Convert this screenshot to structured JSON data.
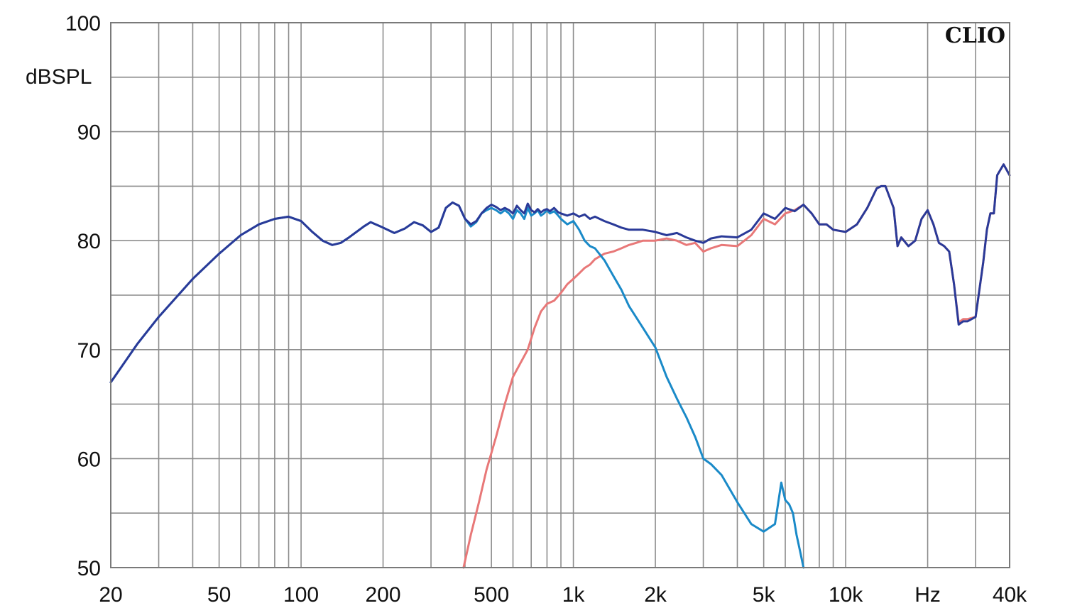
{
  "chart_data": {
    "type": "line",
    "brand": "CLIO",
    "ylabel": "dBSPL",
    "xunit": "Hz",
    "xscale": "log",
    "xlim": [
      20,
      40000
    ],
    "ylim": [
      50,
      100
    ],
    "grid": true,
    "xticks": [
      {
        "value": 20,
        "label": "20"
      },
      {
        "value": 50,
        "label": "50"
      },
      {
        "value": 100,
        "label": "100"
      },
      {
        "value": 200,
        "label": "200"
      },
      {
        "value": 500,
        "label": "500"
      },
      {
        "value": 1000,
        "label": "1k"
      },
      {
        "value": 2000,
        "label": "2k"
      },
      {
        "value": 5000,
        "label": "5k"
      },
      {
        "value": 10000,
        "label": "10k"
      },
      {
        "value": 20000,
        "label": "Hz"
      },
      {
        "value": 40000,
        "label": "40k"
      }
    ],
    "yticks": [
      {
        "value": 100,
        "label": "100"
      },
      {
        "value": 90,
        "label": "90"
      },
      {
        "value": 80,
        "label": "80"
      },
      {
        "value": 70,
        "label": "70"
      },
      {
        "value": 60,
        "label": "60"
      },
      {
        "value": 50,
        "label": "50"
      }
    ],
    "series": [
      {
        "color": "#e87878",
        "x": [
          395,
          420,
          450,
          480,
          520,
          560,
          600,
          640,
          680,
          720,
          760,
          800,
          850,
          900,
          950,
          1000,
          1050,
          1100,
          1150,
          1200,
          1300,
          1400,
          1500,
          1600,
          1700,
          1800,
          2000,
          2200,
          2400,
          2600,
          2800,
          3000,
          3200,
          3500,
          4000,
          4500,
          5000,
          5500,
          6000,
          6500,
          7000,
          7500,
          8000,
          8500,
          9000,
          10000,
          11000,
          12000,
          13000,
          13500,
          14000,
          15000,
          15500,
          16000,
          17000,
          18000,
          19000,
          20000,
          21000,
          22000,
          23000,
          24000,
          25000,
          26000,
          27000,
          28000,
          30000,
          32000,
          33000,
          34000,
          35000,
          36000,
          38000,
          40000
        ],
        "values": [
          50.0,
          53.0,
          56.0,
          59.0,
          62.0,
          65.0,
          67.5,
          68.8,
          70.0,
          72.0,
          73.5,
          74.2,
          74.5,
          75.2,
          76.0,
          76.5,
          77.0,
          77.5,
          77.8,
          78.3,
          78.8,
          79.0,
          79.3,
          79.6,
          79.8,
          80.0,
          80.0,
          80.2,
          80.0,
          79.6,
          79.8,
          79.0,
          79.3,
          79.6,
          79.5,
          80.5,
          82.0,
          81.5,
          82.5,
          82.8,
          83.3,
          82.5,
          81.5,
          81.5,
          81.0,
          80.8,
          81.5,
          83.0,
          84.8,
          85.0,
          85.0,
          83.0,
          79.5,
          80.3,
          79.5,
          80.0,
          82.0,
          82.8,
          81.5,
          79.8,
          79.5,
          79.0,
          76.0,
          72.5,
          72.8,
          72.8,
          73.0,
          78.0,
          81.0,
          82.5,
          82.5,
          86.0,
          87.0,
          86.0
        ]
      },
      {
        "color": "#1a8ac8",
        "x": [
          20,
          25,
          30,
          40,
          50,
          60,
          70,
          80,
          90,
          100,
          110,
          120,
          130,
          140,
          150,
          170,
          180,
          200,
          220,
          240,
          260,
          280,
          300,
          320,
          340,
          360,
          380,
          400,
          420,
          440,
          460,
          480,
          500,
          520,
          540,
          560,
          580,
          600,
          620,
          640,
          660,
          680,
          700,
          720,
          740,
          760,
          780,
          800,
          820,
          850,
          880,
          900,
          950,
          1000,
          1050,
          1100,
          1150,
          1200,
          1300,
          1400,
          1500,
          1600,
          1800,
          2000,
          2200,
          2400,
          2600,
          2800,
          3000,
          3200,
          3500,
          4000,
          4500,
          5000,
          5500,
          5800,
          6000,
          6200,
          6400,
          6600,
          6800,
          7000
        ],
        "values": [
          67.0,
          70.5,
          73.0,
          76.5,
          78.8,
          80.5,
          81.5,
          82.0,
          82.2,
          81.8,
          80.8,
          80.0,
          79.6,
          79.8,
          80.3,
          81.3,
          81.7,
          81.2,
          80.7,
          81.1,
          81.7,
          81.4,
          80.8,
          81.2,
          83.0,
          83.5,
          83.2,
          82.0,
          81.3,
          81.7,
          82.5,
          82.8,
          83.0,
          82.8,
          82.5,
          82.8,
          82.5,
          82.0,
          82.8,
          82.5,
          82.0,
          83.0,
          82.3,
          82.5,
          82.8,
          82.3,
          82.5,
          82.8,
          82.5,
          82.7,
          82.3,
          82.0,
          81.5,
          81.8,
          81.0,
          80.0,
          79.5,
          79.3,
          78.2,
          76.8,
          75.5,
          74.0,
          72.0,
          70.2,
          67.5,
          65.5,
          63.8,
          62.0,
          60.0,
          59.5,
          58.5,
          56.0,
          54.0,
          53.3,
          54.0,
          57.8,
          56.2,
          55.8,
          55.0,
          53.0,
          51.5,
          50.0
        ]
      },
      {
        "color": "#2a3a98",
        "x": [
          20,
          25,
          30,
          40,
          50,
          60,
          70,
          80,
          90,
          100,
          110,
          120,
          130,
          140,
          150,
          170,
          180,
          200,
          220,
          240,
          260,
          280,
          300,
          320,
          340,
          360,
          380,
          400,
          420,
          440,
          460,
          480,
          500,
          520,
          540,
          560,
          580,
          600,
          620,
          640,
          660,
          680,
          700,
          720,
          740,
          760,
          780,
          800,
          820,
          850,
          880,
          900,
          950,
          1000,
          1050,
          1100,
          1150,
          1200,
          1300,
          1400,
          1500,
          1600,
          1800,
          2000,
          2200,
          2400,
          2600,
          2800,
          3000,
          3200,
          3500,
          4000,
          4500,
          5000,
          5500,
          6000,
          6500,
          7000,
          7500,
          8000,
          8500,
          9000,
          10000,
          11000,
          12000,
          13000,
          13500,
          14000,
          15000,
          15500,
          16000,
          17000,
          18000,
          19000,
          20000,
          21000,
          22000,
          23000,
          24000,
          25000,
          26000,
          27000,
          28000,
          30000,
          32000,
          33000,
          34000,
          35000,
          36000,
          38000,
          40000
        ],
        "values": [
          67.0,
          70.5,
          73.0,
          76.5,
          78.8,
          80.5,
          81.5,
          82.0,
          82.2,
          81.8,
          80.8,
          80.0,
          79.6,
          79.8,
          80.3,
          81.3,
          81.7,
          81.2,
          80.7,
          81.1,
          81.7,
          81.4,
          80.8,
          81.2,
          83.0,
          83.5,
          83.2,
          82.0,
          81.5,
          81.8,
          82.5,
          83.0,
          83.3,
          83.1,
          82.8,
          83.0,
          82.8,
          82.5,
          83.2,
          82.8,
          82.5,
          83.4,
          82.8,
          82.6,
          82.9,
          82.6,
          82.8,
          82.9,
          82.7,
          83.0,
          82.6,
          82.5,
          82.3,
          82.5,
          82.2,
          82.4,
          82.0,
          82.2,
          81.8,
          81.5,
          81.2,
          81.0,
          81.0,
          80.8,
          80.5,
          80.7,
          80.3,
          80.0,
          79.8,
          80.2,
          80.4,
          80.3,
          81.0,
          82.5,
          82.0,
          83.0,
          82.7,
          83.3,
          82.5,
          81.5,
          81.5,
          81.0,
          80.8,
          81.5,
          83.0,
          84.8,
          85.0,
          85.0,
          83.0,
          79.5,
          80.3,
          79.5,
          80.0,
          82.0,
          82.8,
          81.5,
          79.8,
          79.5,
          79.0,
          76.0,
          72.3,
          72.6,
          72.6,
          73.0,
          78.0,
          81.0,
          82.5,
          82.5,
          86.0,
          87.0,
          86.0
        ]
      }
    ]
  }
}
